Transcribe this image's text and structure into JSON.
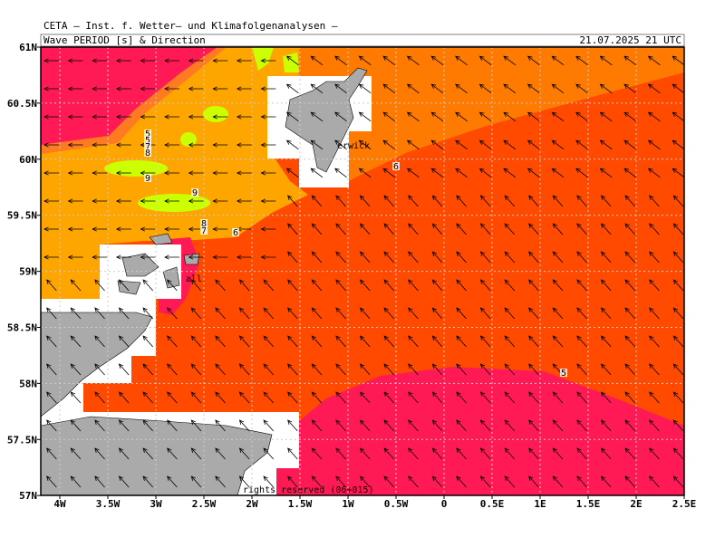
{
  "header": {
    "title": "CETA – Inst. f. Wetter– und Klimafolgenanalysen –",
    "product": "Wave PERIOD [s] & Direction",
    "time": "21.07.2025 21 UTC"
  },
  "axes": {
    "x_labels": [
      "4W",
      "3.5W",
      "3W",
      "2.5W",
      "2W",
      "1.5W",
      "1W",
      "0.5W",
      "0",
      "0.5E",
      "1E",
      "1.5E",
      "2E",
      "2.5E"
    ],
    "y_labels": [
      "61N",
      "60.5N",
      "60N",
      "59.5N",
      "59N",
      "58.5N",
      "58N",
      "57.5N",
      "57N"
    ]
  },
  "contour_labels": [
    "5",
    "5",
    "7",
    "8",
    "9",
    "9",
    "8",
    "7",
    "6",
    "6",
    "5"
  ],
  "places": [
    "erwick",
    "all"
  ],
  "footer": "rights reserved (06+015)"
}
